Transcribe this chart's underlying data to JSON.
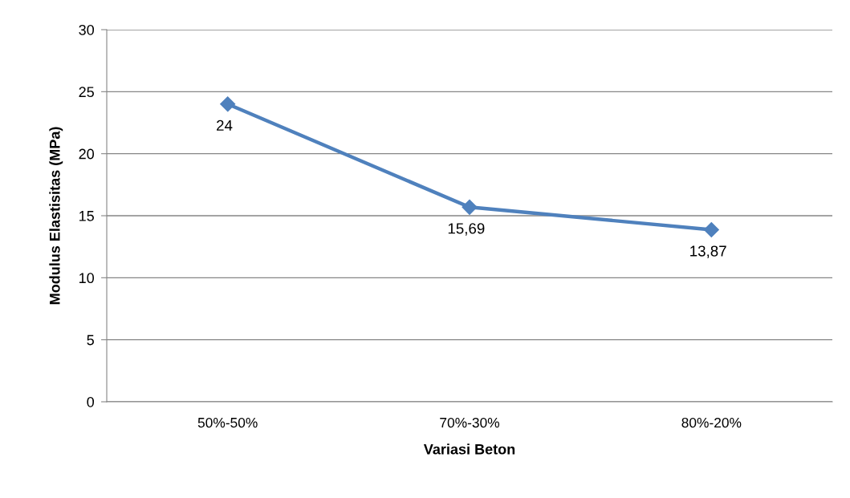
{
  "chart_data": {
    "type": "line",
    "xlabel": "Variasi Beton",
    "ylabel": "Modulus Elastisitas (MPa)",
    "categories": [
      "50%-50%",
      "70%-30%",
      "80%-20%"
    ],
    "series": [
      {
        "color": "#4f81bd",
        "values": [
          24,
          15.69,
          13.87
        ],
        "value_labels": [
          "24",
          "15,69",
          "13,87"
        ]
      }
    ],
    "ylim": [
      0,
      30
    ],
    "yticks": [
      0,
      5,
      10,
      15,
      20,
      25,
      30
    ],
    "grid": "y",
    "legend": false,
    "marker": "diamond",
    "line_style": "solid"
  }
}
